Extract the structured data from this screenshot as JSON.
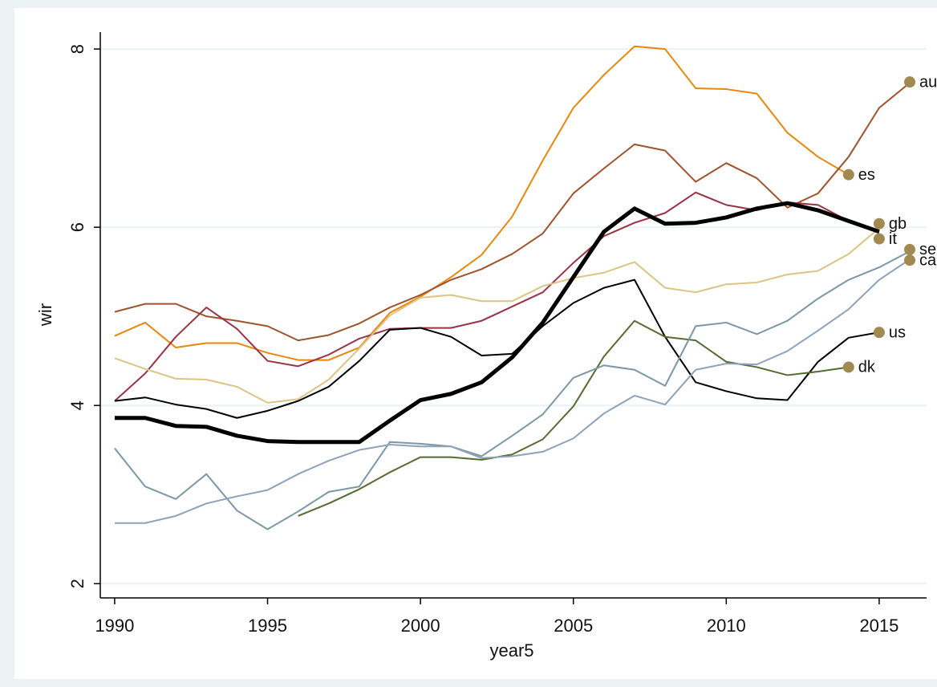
{
  "chart_data": {
    "type": "line",
    "x_label": "year5",
    "y_label": "wir",
    "x": [
      1990,
      1991,
      1992,
      1993,
      1994,
      1995,
      1996,
      1997,
      1998,
      1999,
      2000,
      2001,
      2002,
      2003,
      2004,
      2005,
      2006,
      2007,
      2008,
      2009,
      2010,
      2011,
      2012,
      2013,
      2014,
      2015,
      2016
    ],
    "xlim": [
      1989.53,
      2016.55
    ],
    "xticks": [
      1990,
      1995,
      2000,
      2005,
      2010,
      2015
    ],
    "ylim": [
      1.84,
      8.19
    ],
    "yticks": [
      2,
      4,
      6,
      8
    ],
    "grid": true,
    "series": [
      {
        "color": "#e8870e",
        "width": 2,
        "values": [
          4.78,
          4.93,
          4.65,
          4.7,
          4.7,
          4.59,
          4.51,
          4.51,
          4.65,
          5.04,
          5.22,
          5.44,
          5.69,
          6.12,
          6.75,
          7.34,
          7.71,
          8.03,
          8.0,
          7.56,
          7.55,
          7.5,
          7.06,
          6.79,
          6.59,
          null,
          null
        ]
      },
      {
        "color": "#a0522d",
        "width": 2,
        "values": [
          5.05,
          5.14,
          5.14,
          5.0,
          4.95,
          4.89,
          4.73,
          4.79,
          4.92,
          5.1,
          5.24,
          5.41,
          5.53,
          5.7,
          5.93,
          6.38,
          6.66,
          6.93,
          6.86,
          6.51,
          6.72,
          6.55,
          6.22,
          6.38,
          6.79,
          7.34,
          7.62
        ]
      },
      {
        "color": "#993344",
        "width": 2,
        "values": [
          4.05,
          4.36,
          4.77,
          5.1,
          4.86,
          4.5,
          4.44,
          4.57,
          4.75,
          4.86,
          4.87,
          4.87,
          4.95,
          5.11,
          5.27,
          5.6,
          5.9,
          6.05,
          6.16,
          6.39,
          6.25,
          6.19,
          6.28,
          6.25,
          6.07,
          5.94,
          null
        ]
      },
      {
        "color": "#dcc484",
        "width": 2,
        "values": [
          4.53,
          4.41,
          4.3,
          4.29,
          4.21,
          4.03,
          4.07,
          4.29,
          4.64,
          5.01,
          5.21,
          5.24,
          5.17,
          5.17,
          5.34,
          5.43,
          5.49,
          5.61,
          5.32,
          5.27,
          5.36,
          5.38,
          5.47,
          5.51,
          5.7,
          5.99,
          null
        ]
      },
      {
        "color": "#000000",
        "width": 5,
        "values": [
          3.86,
          3.86,
          3.77,
          3.76,
          3.66,
          3.6,
          3.59,
          3.59,
          3.59,
          3.83,
          4.06,
          4.13,
          4.26,
          4.54,
          4.93,
          5.44,
          5.95,
          6.21,
          6.04,
          6.05,
          6.11,
          6.21,
          6.27,
          6.19,
          6.07,
          5.95,
          null
        ]
      },
      {
        "color": "#000000",
        "width": 2,
        "values": [
          4.05,
          4.09,
          4.01,
          3.96,
          3.86,
          3.94,
          4.05,
          4.21,
          4.5,
          4.85,
          4.87,
          4.77,
          4.56,
          4.58,
          4.89,
          5.15,
          5.32,
          5.41,
          4.77,
          4.26,
          4.16,
          4.08,
          4.06,
          4.49,
          4.76,
          4.82,
          null
        ]
      },
      {
        "color": "#556b2f",
        "width": 2,
        "values": [
          null,
          null,
          null,
          null,
          null,
          null,
          2.76,
          2.9,
          3.06,
          3.25,
          3.42,
          3.42,
          3.39,
          3.45,
          3.62,
          3.99,
          4.55,
          4.95,
          4.77,
          4.73,
          4.49,
          4.43,
          4.34,
          4.38,
          4.43,
          null,
          null
        ]
      },
      {
        "color": "#7b98a4",
        "width": 2,
        "values": [
          3.52,
          3.09,
          2.95,
          3.23,
          2.82,
          2.61,
          2.81,
          3.03,
          3.09,
          3.59,
          3.57,
          3.54,
          3.43,
          3.66,
          3.9,
          4.31,
          4.45,
          4.4,
          4.22,
          4.89,
          4.93,
          4.8,
          4.95,
          5.2,
          5.41,
          5.55,
          5.73
        ]
      },
      {
        "color": "#8ea2ba",
        "width": 2,
        "values": [
          2.68,
          2.68,
          2.76,
          2.9,
          2.98,
          3.05,
          3.23,
          3.38,
          3.5,
          3.56,
          3.54,
          3.54,
          3.41,
          3.43,
          3.48,
          3.63,
          3.91,
          4.11,
          4.01,
          4.4,
          4.47,
          4.46,
          4.61,
          4.84,
          5.08,
          5.41,
          5.64
        ]
      }
    ],
    "marker_labels": {
      "color": "#a08a50",
      "labels": [
        "au",
        "es",
        "gb",
        "it",
        "se",
        "ca",
        "us",
        "dk"
      ],
      "x": [
        2016,
        2014,
        2015,
        2015,
        2016,
        2016,
        2015,
        2014
      ],
      "values": [
        7.63,
        6.59,
        6.04,
        5.87,
        5.75,
        5.63,
        4.82,
        4.43
      ]
    }
  }
}
